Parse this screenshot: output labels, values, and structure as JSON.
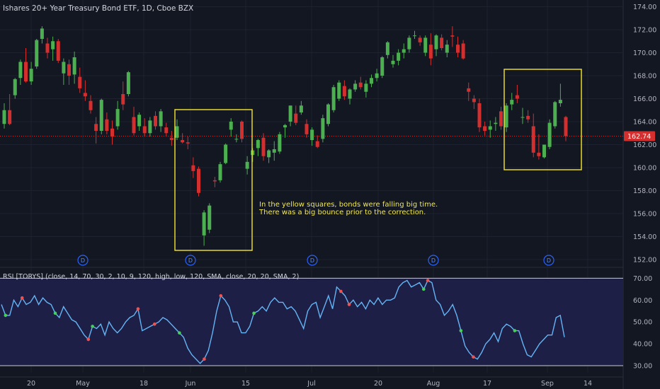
{
  "header": {
    "symbol_title": "Ishares 20+ Year Treasury Bond ETF, 1D, Cboe BZX",
    "indicator_title": "RSI [TORYS] (close, 14, 70, 30, 2, 10, 9, 120, high, low, 120, SMA, close, 20, 20, SMA, 2)"
  },
  "annotation": {
    "line1": "In the yellow squares, bonds were falling big time.",
    "line2": "There was a big bounce prior to the correction."
  },
  "colors": {
    "background": "#131722",
    "up": "#4caf50",
    "down": "#d32f2f",
    "highlight": "#f5e62f",
    "rsi_line": "#64b5f6",
    "rsi_band": "#1e1f46",
    "grid": "#1e2230",
    "text": "#b2b5be",
    "last_price_badge": "#d32f2f",
    "dividend_marker": "#2962ff"
  },
  "chart_data": [
    {
      "type": "candlestick",
      "title": "Ishares 20+ Year Treasury Bond ETF, 1D, Cboe BZX",
      "y_ticks": [
        152,
        154,
        156,
        158,
        160,
        162,
        164,
        166,
        168,
        170,
        172,
        174
      ],
      "y_tick_labels": [
        "152.00",
        "154.00",
        "156.00",
        "158.00",
        "160.00",
        "162.00",
        "164.00",
        "166.00",
        "168.00",
        "170.00",
        "172.00",
        "174.00"
      ],
      "ylim": [
        151.3,
        174.6
      ],
      "x_ticks": [
        "20",
        "May",
        "18",
        "Jun",
        "15",
        "Jul",
        "20",
        "Aug",
        "17",
        "Sep",
        "14"
      ],
      "last_price": 162.74,
      "last_price_label": "162.74",
      "dividend_marker_label": "D",
      "dividend_markers": 5,
      "highlight_boxes": 2,
      "ohlc": [
        [
          163.8,
          165.6,
          163.4,
          165.0
        ],
        [
          165.0,
          166.4,
          163.7,
          163.8
        ],
        [
          166.3,
          167.8,
          166.0,
          167.7
        ],
        [
          167.8,
          169.4,
          167.2,
          169.2
        ],
        [
          169.2,
          170.4,
          167.4,
          167.5
        ],
        [
          167.5,
          169.2,
          167.2,
          168.6
        ],
        [
          168.8,
          171.2,
          168.6,
          171.1
        ],
        [
          171.2,
          172.3,
          170.8,
          172.1
        ],
        [
          170.8,
          171.3,
          169.5,
          170.0
        ],
        [
          170.3,
          171.4,
          169.3,
          171.0
        ],
        [
          171.0,
          171.2,
          169.1,
          169.3
        ],
        [
          168.2,
          169.5,
          167.2,
          169.2
        ],
        [
          169.0,
          169.4,
          167.2,
          168.0
        ],
        [
          168.1,
          170.1,
          167.3,
          169.6
        ],
        [
          167.9,
          168.7,
          166.5,
          166.9
        ],
        [
          166.5,
          167.6,
          165.8,
          166.2
        ],
        [
          165.8,
          166.3,
          164.7,
          165.0
        ],
        [
          163.8,
          164.4,
          162.1,
          163.2
        ],
        [
          163.2,
          166.0,
          162.9,
          165.9
        ],
        [
          164.2,
          164.8,
          162.9,
          163.2
        ],
        [
          163.4,
          164.1,
          162.0,
          162.7
        ],
        [
          163.6,
          165.8,
          163.3,
          165.1
        ],
        [
          166.4,
          167.5,
          165.0,
          165.5
        ],
        [
          166.4,
          168.4,
          166.2,
          168.3
        ],
        [
          164.4,
          165.3,
          162.8,
          163.0
        ],
        [
          163.6,
          164.8,
          163.2,
          164.6
        ],
        [
          163.6,
          164.3,
          162.7,
          163.0
        ],
        [
          163.0,
          164.4,
          162.7,
          164.1
        ],
        [
          164.5,
          164.9,
          163.3,
          163.6
        ],
        [
          163.6,
          165.1,
          163.1,
          164.9
        ],
        [
          163.5,
          163.9,
          162.7,
          163.0
        ],
        [
          162.6,
          163.2,
          161.9,
          162.4
        ],
        [
          162.6,
          164.2,
          162.4,
          163.6
        ],
        [
          162.4,
          163.0,
          162.1,
          162.2
        ],
        [
          162.2,
          162.7,
          161.6,
          162.1
        ],
        [
          160.2,
          160.9,
          159.1,
          159.7
        ],
        [
          159.9,
          160.1,
          157.5,
          157.8
        ],
        [
          154.1,
          156.3,
          153.2,
          156.1
        ],
        [
          154.6,
          156.9,
          154.3,
          156.7
        ],
        [
          158.9,
          159.2,
          158.3,
          158.8
        ],
        [
          158.9,
          160.5,
          158.7,
          160.3
        ],
        [
          160.4,
          162.1,
          160.3,
          162.0
        ],
        [
          163.3,
          164.3,
          162.7,
          164.0
        ],
        [
          162.5,
          162.9,
          162.2,
          162.5
        ],
        [
          164.0,
          164.1,
          162.2,
          162.5
        ],
        [
          159.9,
          161.0,
          159.4,
          160.5
        ],
        [
          161.1,
          161.7,
          160.5,
          161.5
        ],
        [
          161.7,
          162.5,
          161.0,
          162.4
        ],
        [
          162.6,
          163.0,
          160.6,
          161.0
        ],
        [
          160.9,
          161.6,
          160.4,
          161.5
        ],
        [
          161.3,
          162.3,
          160.6,
          161.6
        ],
        [
          161.4,
          163.1,
          161.2,
          162.9
        ],
        [
          163.5,
          163.8,
          162.6,
          163.7
        ],
        [
          164.0,
          165.4,
          163.6,
          165.4
        ],
        [
          164.7,
          165.4,
          163.7,
          163.9
        ],
        [
          164.8,
          165.8,
          164.6,
          165.4
        ],
        [
          163.8,
          164.2,
          162.6,
          162.9
        ],
        [
          162.4,
          163.5,
          161.9,
          163.3
        ],
        [
          162.3,
          162.8,
          161.7,
          161.8
        ],
        [
          162.5,
          164.6,
          162.2,
          164.3
        ],
        [
          163.8,
          165.6,
          163.6,
          165.5
        ],
        [
          165.0,
          167.2,
          164.8,
          167.0
        ],
        [
          166.0,
          167.6,
          165.8,
          167.4
        ],
        [
          167.1,
          167.6,
          165.9,
          166.2
        ],
        [
          166.0,
          166.9,
          165.5,
          166.8
        ],
        [
          166.8,
          167.6,
          166.6,
          167.3
        ],
        [
          167.4,
          167.9,
          166.8,
          167.0
        ],
        [
          166.6,
          167.6,
          166.1,
          167.3
        ],
        [
          167.3,
          168.1,
          167.0,
          167.8
        ],
        [
          167.8,
          168.6,
          167.5,
          168.2
        ],
        [
          168.0,
          169.7,
          167.8,
          169.6
        ],
        [
          169.8,
          171.0,
          169.5,
          170.9
        ],
        [
          169.0,
          169.8,
          168.7,
          169.3
        ],
        [
          169.3,
          170.3,
          168.9,
          170.0
        ],
        [
          170.0,
          170.8,
          169.5,
          170.3
        ],
        [
          170.3,
          171.5,
          170.0,
          171.3
        ],
        [
          171.5,
          171.9,
          171.2,
          171.5
        ],
        [
          171.3,
          171.5,
          170.6,
          170.9
        ],
        [
          170.0,
          171.5,
          169.7,
          171.3
        ],
        [
          170.7,
          171.7,
          168.9,
          169.5
        ],
        [
          170.3,
          171.6,
          169.7,
          171.5
        ],
        [
          171.3,
          171.6,
          170.2,
          170.4
        ],
        [
          170.0,
          171.1,
          169.6,
          170.7
        ],
        [
          171.5,
          172.3,
          170.5,
          171.4
        ],
        [
          170.7,
          171.4,
          169.6,
          170.0
        ],
        [
          170.8,
          171.1,
          169.4,
          169.5
        ],
        [
          166.9,
          167.4,
          165.8,
          166.6
        ],
        [
          166.0,
          166.3,
          165.1,
          165.7
        ],
        [
          165.6,
          166.0,
          163.1,
          163.5
        ],
        [
          163.6,
          164.0,
          162.8,
          163.2
        ],
        [
          163.3,
          164.1,
          162.6,
          163.6
        ],
        [
          163.8,
          164.4,
          163.2,
          163.9
        ],
        [
          164.9,
          165.3,
          163.3,
          163.6
        ],
        [
          163.5,
          165.6,
          163.1,
          165.4
        ],
        [
          165.5,
          166.5,
          165.0,
          165.9
        ],
        [
          166.3,
          167.2,
          165.6,
          166.0
        ],
        [
          164.4,
          165.2,
          163.8,
          164.4
        ],
        [
          164.5,
          165.0,
          163.9,
          164.2
        ],
        [
          163.6,
          164.7,
          160.9,
          161.3
        ],
        [
          161.3,
          162.9,
          160.7,
          161.0
        ],
        [
          160.9,
          162.0,
          160.8,
          162.0
        ],
        [
          161.8,
          164.2,
          161.6,
          163.9
        ],
        [
          163.6,
          165.8,
          163.4,
          165.7
        ],
        [
          165.6,
          167.3,
          165.3,
          165.9
        ],
        [
          164.4,
          164.5,
          162.3,
          162.74
        ]
      ]
    },
    {
      "type": "line",
      "title": "RSI [TORYS]",
      "y_ticks": [
        30,
        40,
        50,
        60,
        70
      ],
      "y_tick_labels": [
        "30.00",
        "40.00",
        "50.00",
        "60.00",
        "70.00"
      ],
      "ylim": [
        25.5,
        73.5
      ],
      "band": [
        30,
        70
      ],
      "series": [
        {
          "name": "RSI",
          "values": [
            58,
            53,
            53,
            60,
            57,
            61,
            58,
            59,
            62,
            58,
            61,
            59,
            58,
            54,
            52,
            57,
            54,
            51,
            50,
            47,
            44,
            42,
            48,
            47,
            49,
            44,
            50,
            47,
            45,
            47,
            50,
            52,
            53,
            56,
            46,
            47,
            48,
            49,
            50,
            52,
            51,
            49,
            47,
            45,
            43,
            38,
            35,
            33,
            31,
            33,
            37,
            45,
            55,
            62,
            60,
            57,
            50,
            50,
            45,
            45,
            48,
            54,
            55,
            57,
            55,
            59,
            61,
            59,
            59,
            56,
            57,
            55,
            51,
            47,
            55,
            58,
            59,
            52,
            57,
            62,
            56,
            66,
            64,
            62,
            58,
            60,
            57,
            59,
            56,
            60,
            58,
            61,
            58,
            60,
            60,
            61,
            66,
            68,
            69,
            66,
            67,
            68,
            65,
            69,
            68,
            60,
            58,
            53,
            55,
            58,
            53,
            46,
            39,
            36,
            34,
            33,
            36,
            40,
            42,
            45,
            41,
            47,
            49,
            48,
            46,
            46,
            40,
            35,
            34,
            37,
            40,
            42,
            44,
            44,
            52,
            53,
            43
          ]
        }
      ],
      "high_markers_at": [
        5,
        21,
        33,
        37,
        49,
        53,
        82,
        84,
        103,
        114
      ],
      "low_markers_at": [
        1,
        13,
        22,
        43,
        61,
        102,
        111,
        124
      ]
    }
  ]
}
